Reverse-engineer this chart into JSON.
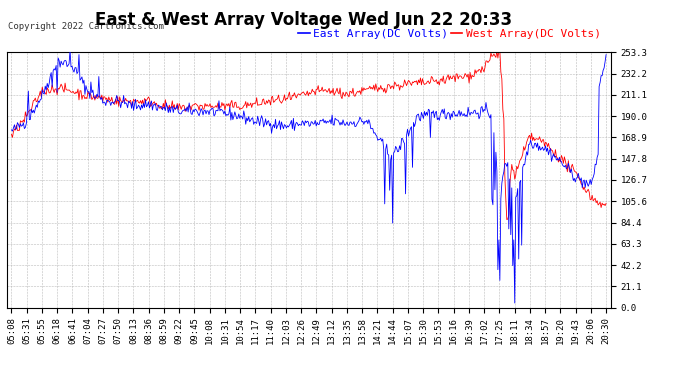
{
  "title": "East & West Array Voltage Wed Jun 22 20:33",
  "copyright_text": "Copyright 2022 Cartronics.com",
  "legend_east": "East Array(DC Volts)",
  "legend_west": "West Array(DC Volts)",
  "east_color": "blue",
  "west_color": "red",
  "background_color": "#ffffff",
  "grid_color": "#aaaaaa",
  "yticks": [
    0.0,
    21.1,
    42.2,
    63.3,
    84.4,
    105.6,
    126.7,
    147.8,
    168.9,
    190.0,
    211.1,
    232.2,
    253.3
  ],
  "ymin": 0.0,
  "ymax": 253.3,
  "x_labels": [
    "05:08",
    "05:31",
    "05:55",
    "06:18",
    "06:41",
    "07:04",
    "07:27",
    "07:50",
    "08:13",
    "08:36",
    "08:59",
    "09:22",
    "09:45",
    "10:08",
    "10:31",
    "10:54",
    "11:17",
    "11:40",
    "12:03",
    "12:26",
    "12:49",
    "13:12",
    "13:35",
    "13:58",
    "14:21",
    "14:44",
    "15:07",
    "15:30",
    "15:53",
    "16:16",
    "16:39",
    "17:02",
    "17:25",
    "18:11",
    "18:34",
    "18:57",
    "19:20",
    "19:43",
    "20:06",
    "20:30"
  ],
  "title_fontsize": 12,
  "tick_fontsize": 6.5,
  "legend_fontsize": 8,
  "copyright_fontsize": 6.5
}
